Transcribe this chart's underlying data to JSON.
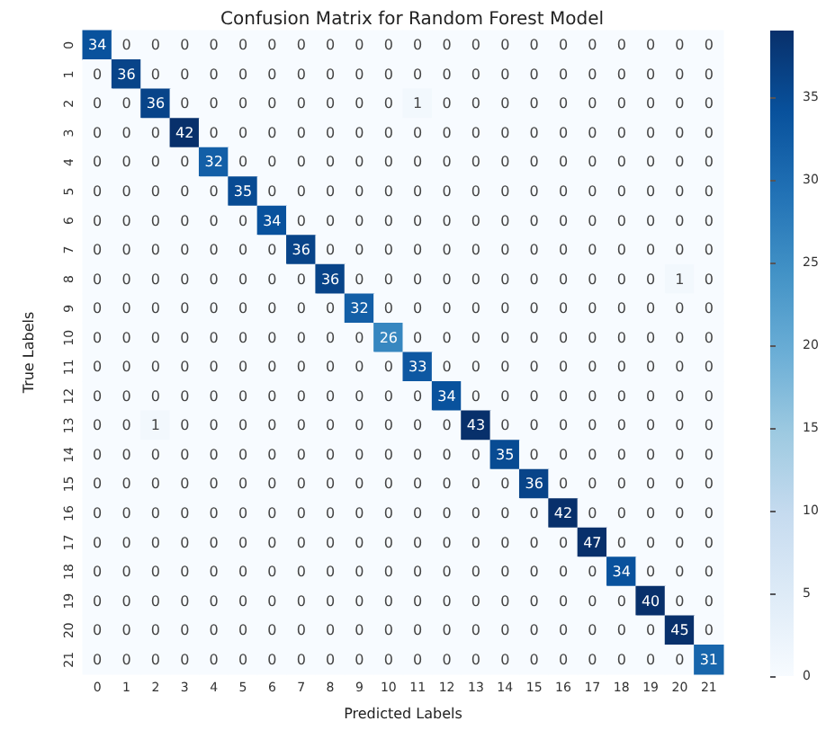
{
  "chart_data": {
    "type": "heatmap",
    "title": "Confusion Matrix for Random Forest Model",
    "xlabel": "Predicted Labels",
    "ylabel": "True Labels",
    "categories": [
      "0",
      "1",
      "2",
      "3",
      "4",
      "5",
      "6",
      "7",
      "8",
      "9",
      "10",
      "11",
      "12",
      "13",
      "14",
      "15",
      "16",
      "17",
      "18",
      "19",
      "20",
      "21"
    ],
    "y_categories": [
      "0",
      "1",
      "2",
      "3",
      "4",
      "5",
      "6",
      "7",
      "8",
      "9",
      "10",
      "11",
      "12",
      "13",
      "14",
      "15",
      "16",
      "17",
      "18",
      "19",
      "20",
      "21"
    ],
    "cells": [
      [
        34,
        0,
        0,
        0,
        0,
        0,
        0,
        0,
        0,
        0,
        0,
        0,
        0,
        0,
        0,
        0,
        0,
        0,
        0,
        0,
        0,
        0
      ],
      [
        0,
        36,
        0,
        0,
        0,
        0,
        0,
        0,
        0,
        0,
        0,
        0,
        0,
        0,
        0,
        0,
        0,
        0,
        0,
        0,
        0,
        0
      ],
      [
        0,
        0,
        36,
        0,
        0,
        0,
        0,
        0,
        0,
        0,
        0,
        1,
        0,
        0,
        0,
        0,
        0,
        0,
        0,
        0,
        0,
        0
      ],
      [
        0,
        0,
        0,
        42,
        0,
        0,
        0,
        0,
        0,
        0,
        0,
        0,
        0,
        0,
        0,
        0,
        0,
        0,
        0,
        0,
        0,
        0
      ],
      [
        0,
        0,
        0,
        0,
        32,
        0,
        0,
        0,
        0,
        0,
        0,
        0,
        0,
        0,
        0,
        0,
        0,
        0,
        0,
        0,
        0,
        0
      ],
      [
        0,
        0,
        0,
        0,
        0,
        35,
        0,
        0,
        0,
        0,
        0,
        0,
        0,
        0,
        0,
        0,
        0,
        0,
        0,
        0,
        0,
        0
      ],
      [
        0,
        0,
        0,
        0,
        0,
        0,
        34,
        0,
        0,
        0,
        0,
        0,
        0,
        0,
        0,
        0,
        0,
        0,
        0,
        0,
        0,
        0
      ],
      [
        0,
        0,
        0,
        0,
        0,
        0,
        0,
        36,
        0,
        0,
        0,
        0,
        0,
        0,
        0,
        0,
        0,
        0,
        0,
        0,
        0,
        0
      ],
      [
        0,
        0,
        0,
        0,
        0,
        0,
        0,
        0,
        36,
        0,
        0,
        0,
        0,
        0,
        0,
        0,
        0,
        0,
        0,
        0,
        1,
        0
      ],
      [
        0,
        0,
        0,
        0,
        0,
        0,
        0,
        0,
        0,
        32,
        0,
        0,
        0,
        0,
        0,
        0,
        0,
        0,
        0,
        0,
        0,
        0
      ],
      [
        0,
        0,
        0,
        0,
        0,
        0,
        0,
        0,
        0,
        0,
        26,
        0,
        0,
        0,
        0,
        0,
        0,
        0,
        0,
        0,
        0,
        0
      ],
      [
        0,
        0,
        0,
        0,
        0,
        0,
        0,
        0,
        0,
        0,
        0,
        33,
        0,
        0,
        0,
        0,
        0,
        0,
        0,
        0,
        0,
        0
      ],
      [
        0,
        0,
        0,
        0,
        0,
        0,
        0,
        0,
        0,
        0,
        0,
        0,
        34,
        0,
        0,
        0,
        0,
        0,
        0,
        0,
        0,
        0
      ],
      [
        0,
        0,
        1,
        0,
        0,
        0,
        0,
        0,
        0,
        0,
        0,
        0,
        0,
        43,
        0,
        0,
        0,
        0,
        0,
        0,
        0,
        0
      ],
      [
        0,
        0,
        0,
        0,
        0,
        0,
        0,
        0,
        0,
        0,
        0,
        0,
        0,
        0,
        35,
        0,
        0,
        0,
        0,
        0,
        0,
        0
      ],
      [
        0,
        0,
        0,
        0,
        0,
        0,
        0,
        0,
        0,
        0,
        0,
        0,
        0,
        0,
        0,
        36,
        0,
        0,
        0,
        0,
        0,
        0
      ],
      [
        0,
        0,
        0,
        0,
        0,
        0,
        0,
        0,
        0,
        0,
        0,
        0,
        0,
        0,
        0,
        0,
        42,
        0,
        0,
        0,
        0,
        0
      ],
      [
        0,
        0,
        0,
        0,
        0,
        0,
        0,
        0,
        0,
        0,
        0,
        0,
        0,
        0,
        0,
        0,
        0,
        47,
        0,
        0,
        0,
        0
      ],
      [
        0,
        0,
        0,
        0,
        0,
        0,
        0,
        0,
        0,
        0,
        0,
        0,
        0,
        0,
        0,
        0,
        0,
        0,
        34,
        0,
        0,
        0
      ],
      [
        0,
        0,
        0,
        0,
        0,
        0,
        0,
        0,
        0,
        0,
        0,
        0,
        0,
        0,
        0,
        0,
        0,
        0,
        0,
        40,
        0,
        0
      ],
      [
        0,
        0,
        0,
        0,
        0,
        0,
        0,
        0,
        0,
        0,
        0,
        0,
        0,
        0,
        0,
        0,
        0,
        0,
        0,
        0,
        45,
        0
      ],
      [
        0,
        0,
        0,
        0,
        0,
        0,
        0,
        0,
        0,
        0,
        0,
        0,
        0,
        0,
        0,
        0,
        0,
        0,
        0,
        0,
        0,
        31
      ]
    ],
    "clim": [
      0,
      39
    ],
    "cticks": [
      0,
      5,
      10,
      15,
      20,
      25,
      30,
      35
    ],
    "data_labels": true
  }
}
